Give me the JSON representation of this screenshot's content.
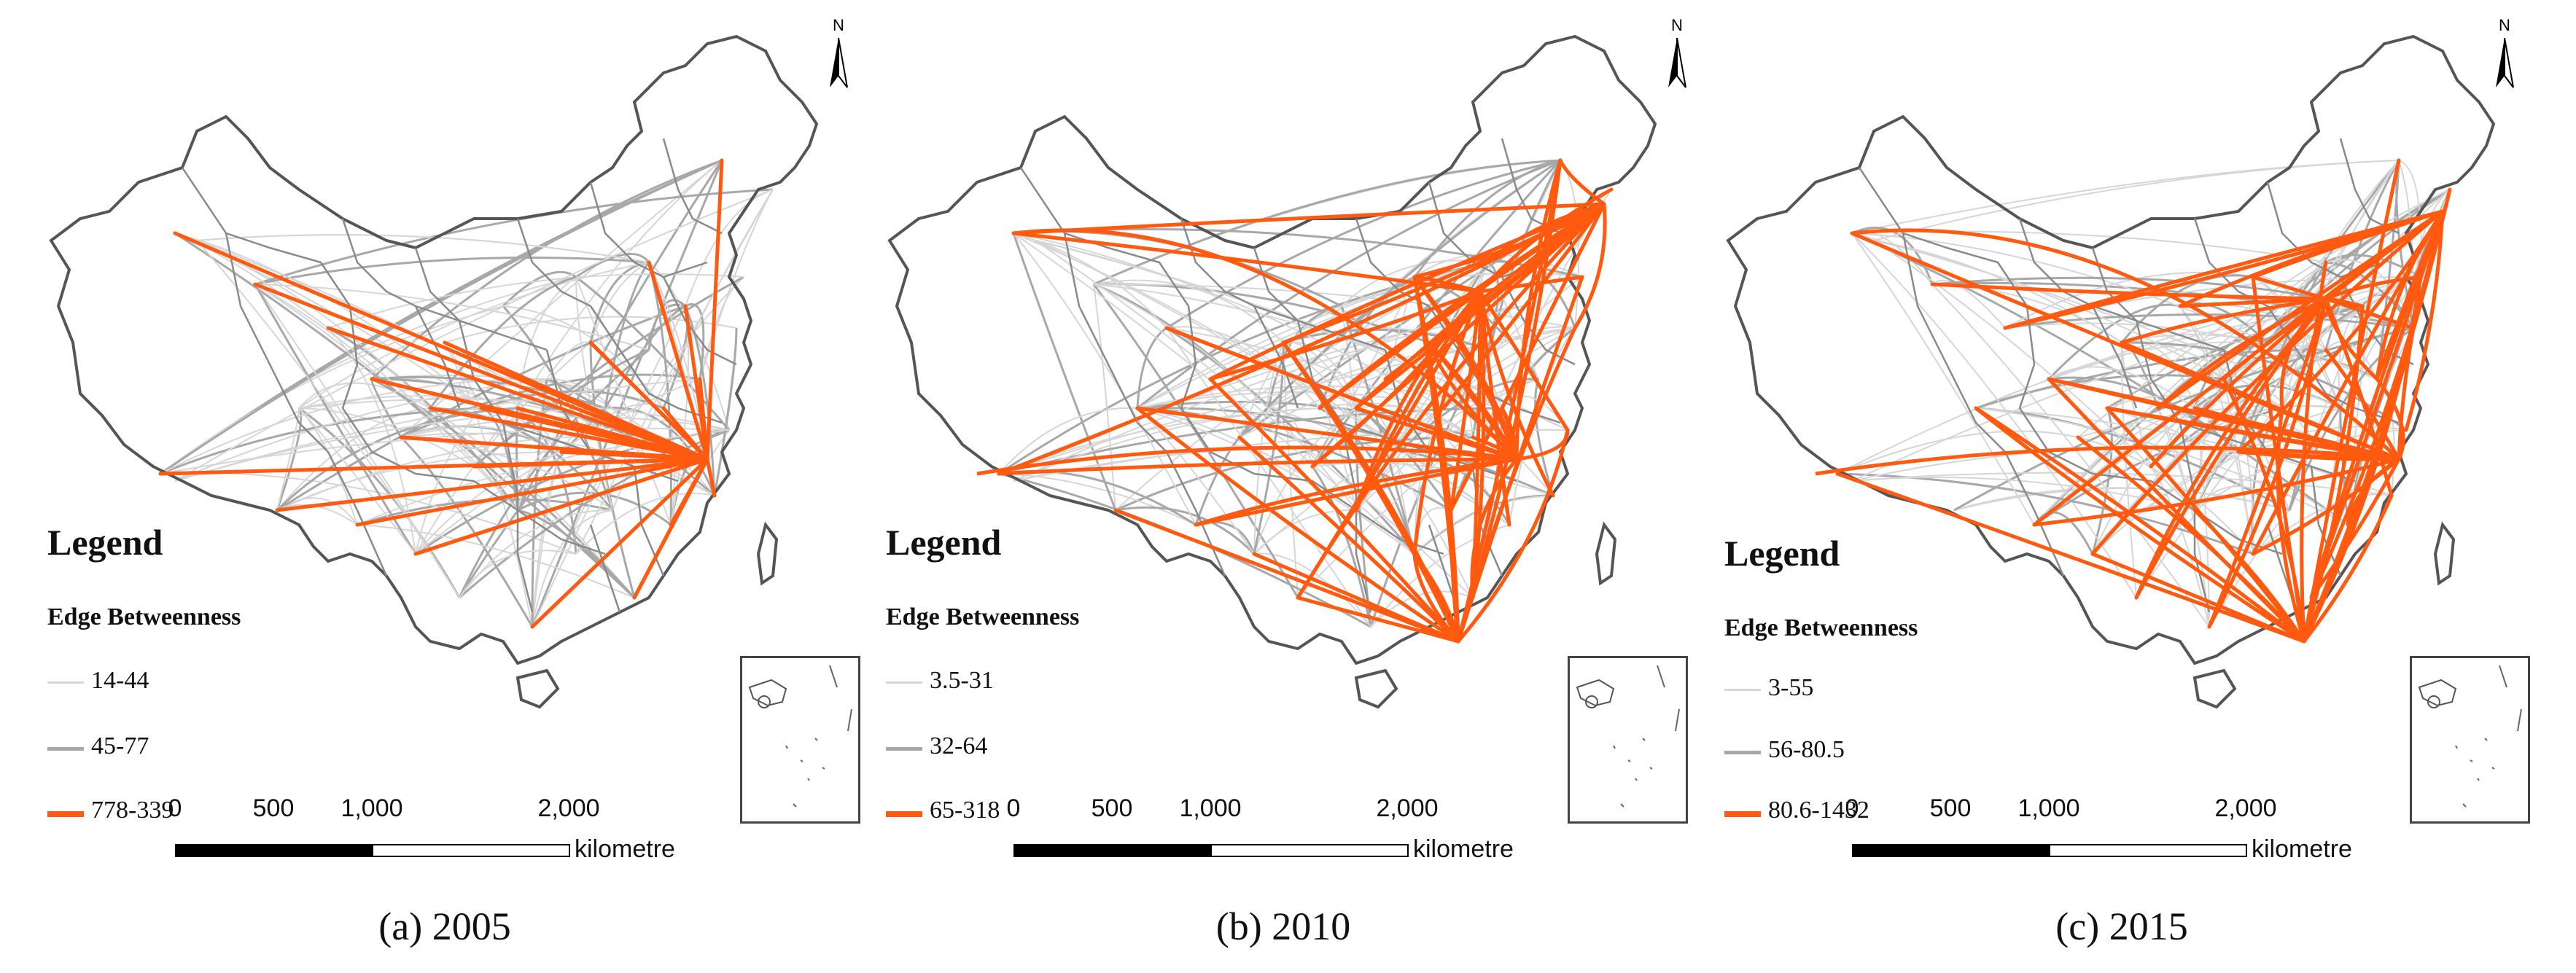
{
  "panels": [
    {
      "caption": "(a)  2005",
      "legend_title": "Legend",
      "legend_subtitle": "Edge Betweenness",
      "classes": [
        {
          "label": "14-44",
          "color": "#d6d6d6"
        },
        {
          "label": "45-77",
          "color": "#a8a8a8"
        },
        {
          "label": "778-339",
          "color": "#ff5a0f"
        }
      ],
      "hub_count": 1
    },
    {
      "caption": "(b)  2010",
      "legend_title": "Legend",
      "legend_subtitle": "Edge Betweenness",
      "classes": [
        {
          "label": "3.5-31",
          "color": "#d6d6d6"
        },
        {
          "label": "32-64",
          "color": "#a8a8a8"
        },
        {
          "label": "65-318",
          "color": "#ff5a0f"
        }
      ],
      "hub_count": 4
    },
    {
      "caption": "(c)  2015",
      "legend_title": "Legend",
      "legend_subtitle": "Edge Betweenness",
      "classes": [
        {
          "label": "3-55",
          "color": "#d6d6d6"
        },
        {
          "label": "56-80.5",
          "color": "#a8a8a8"
        },
        {
          "label": "80.6-1432",
          "color": "#ff5a0f"
        }
      ],
      "hub_count": 4
    }
  ],
  "scale_bar": {
    "ticks": [
      "0",
      "500",
      "1,000",
      "2,000"
    ],
    "unit": "kilometre"
  },
  "north_label": "N",
  "colors": {
    "boundary": "#555555",
    "strong_edge": "#ff5a0f",
    "weak_edge": "#d6d6d6",
    "mid_edge": "#a8a8a8"
  }
}
